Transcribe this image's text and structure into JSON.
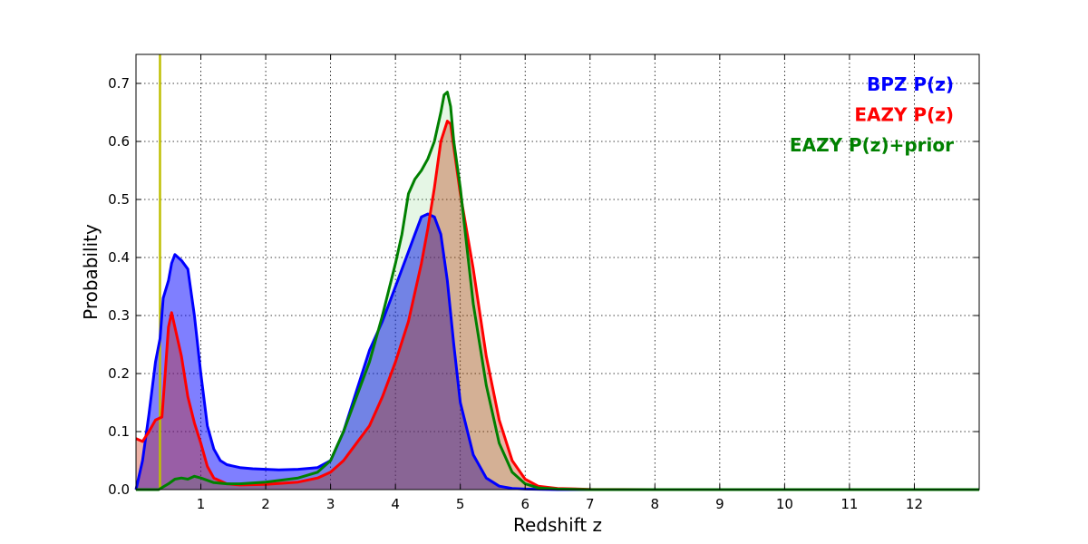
{
  "chart_data": {
    "type": "area",
    "title": "",
    "xlabel": "Redshift z",
    "ylabel": "Probability",
    "xlim": [
      0,
      13
    ],
    "ylim": [
      0,
      0.75
    ],
    "xticks": [
      1,
      2,
      3,
      4,
      5,
      6,
      7,
      8,
      9,
      10,
      11,
      12
    ],
    "yticks": [
      0.0,
      0.1,
      0.2,
      0.3,
      0.4,
      0.5,
      0.6,
      0.7
    ],
    "ytick_labels": [
      "0.0",
      "0.1",
      "0.2",
      "0.3",
      "0.4",
      "0.5",
      "0.6",
      "0.7"
    ],
    "grid": true,
    "legend_position": "top-right",
    "reference_line_x": 0.37,
    "reference_line_color": "#bfbf00",
    "series": [
      {
        "name": "BPZ P(z)",
        "color": "#0000ff",
        "fill_color": "#0000ff",
        "fill_opacity": 0.5,
        "x": [
          0,
          0.1,
          0.2,
          0.3,
          0.37,
          0.42,
          0.5,
          0.55,
          0.6,
          0.7,
          0.8,
          0.9,
          1.0,
          1.1,
          1.2,
          1.3,
          1.4,
          1.6,
          1.8,
          2.0,
          2.2,
          2.5,
          2.8,
          3.0,
          3.2,
          3.4,
          3.6,
          3.8,
          4.0,
          4.2,
          4.3,
          4.4,
          4.5,
          4.6,
          4.7,
          4.8,
          4.9,
          5.0,
          5.2,
          5.4,
          5.6,
          5.8,
          6.0,
          6.5,
          7,
          8,
          9,
          10,
          11,
          12,
          13
        ],
        "y": [
          0.0,
          0.05,
          0.13,
          0.22,
          0.26,
          0.33,
          0.36,
          0.39,
          0.405,
          0.395,
          0.38,
          0.3,
          0.2,
          0.11,
          0.07,
          0.05,
          0.043,
          0.038,
          0.036,
          0.035,
          0.034,
          0.035,
          0.038,
          0.05,
          0.1,
          0.17,
          0.24,
          0.29,
          0.35,
          0.41,
          0.44,
          0.47,
          0.475,
          0.47,
          0.44,
          0.36,
          0.25,
          0.15,
          0.06,
          0.02,
          0.006,
          0.002,
          0.001,
          0.0,
          0.0,
          0.0,
          0.0,
          0.0,
          0.0,
          0.0,
          0.0
        ]
      },
      {
        "name": "EAZY P(z)",
        "color": "#ff0000",
        "fill_color": "#cc2200",
        "fill_opacity": 0.35,
        "x": [
          0,
          0.1,
          0.2,
          0.3,
          0.4,
          0.45,
          0.5,
          0.55,
          0.6,
          0.7,
          0.8,
          0.9,
          1.0,
          1.1,
          1.2,
          1.4,
          1.6,
          2.0,
          2.5,
          2.8,
          3.0,
          3.2,
          3.4,
          3.6,
          3.8,
          4.0,
          4.2,
          4.4,
          4.5,
          4.6,
          4.7,
          4.8,
          4.85,
          4.9,
          5.0,
          5.2,
          5.4,
          5.6,
          5.8,
          6.0,
          6.2,
          6.5,
          7,
          8,
          9,
          10,
          11,
          12,
          13
        ],
        "y": [
          0.088,
          0.083,
          0.1,
          0.12,
          0.125,
          0.2,
          0.28,
          0.305,
          0.28,
          0.23,
          0.16,
          0.115,
          0.08,
          0.04,
          0.02,
          0.01,
          0.008,
          0.009,
          0.013,
          0.02,
          0.03,
          0.05,
          0.08,
          0.11,
          0.16,
          0.22,
          0.29,
          0.39,
          0.45,
          0.52,
          0.6,
          0.635,
          0.63,
          0.59,
          0.51,
          0.38,
          0.23,
          0.12,
          0.05,
          0.018,
          0.006,
          0.002,
          0.0005,
          0.0,
          0.0,
          0.0,
          0.0,
          0.0,
          0.0
        ]
      },
      {
        "name": "EAZY P(z)+prior",
        "color": "#008000",
        "fill_color": "#00aa00",
        "fill_opacity": 0.1,
        "x": [
          0,
          0.2,
          0.35,
          0.5,
          0.6,
          0.7,
          0.8,
          0.9,
          1.0,
          1.2,
          1.4,
          1.6,
          2.0,
          2.5,
          2.8,
          3.0,
          3.2,
          3.4,
          3.6,
          3.8,
          4.0,
          4.1,
          4.2,
          4.3,
          4.4,
          4.5,
          4.6,
          4.7,
          4.75,
          4.8,
          4.85,
          4.9,
          5.0,
          5.1,
          5.2,
          5.4,
          5.6,
          5.8,
          6.0,
          6.2,
          6.5,
          7,
          8,
          9,
          10,
          11,
          12,
          13
        ],
        "y": [
          0.0,
          0.0,
          0.0,
          0.01,
          0.018,
          0.02,
          0.018,
          0.023,
          0.02,
          0.012,
          0.01,
          0.01,
          0.013,
          0.02,
          0.03,
          0.05,
          0.1,
          0.16,
          0.22,
          0.3,
          0.39,
          0.44,
          0.51,
          0.535,
          0.55,
          0.57,
          0.6,
          0.65,
          0.68,
          0.685,
          0.66,
          0.6,
          0.52,
          0.42,
          0.32,
          0.18,
          0.08,
          0.03,
          0.01,
          0.003,
          0.001,
          0.0,
          0.0,
          0.0,
          0.0,
          0.0,
          0.0,
          0.0
        ]
      }
    ]
  }
}
